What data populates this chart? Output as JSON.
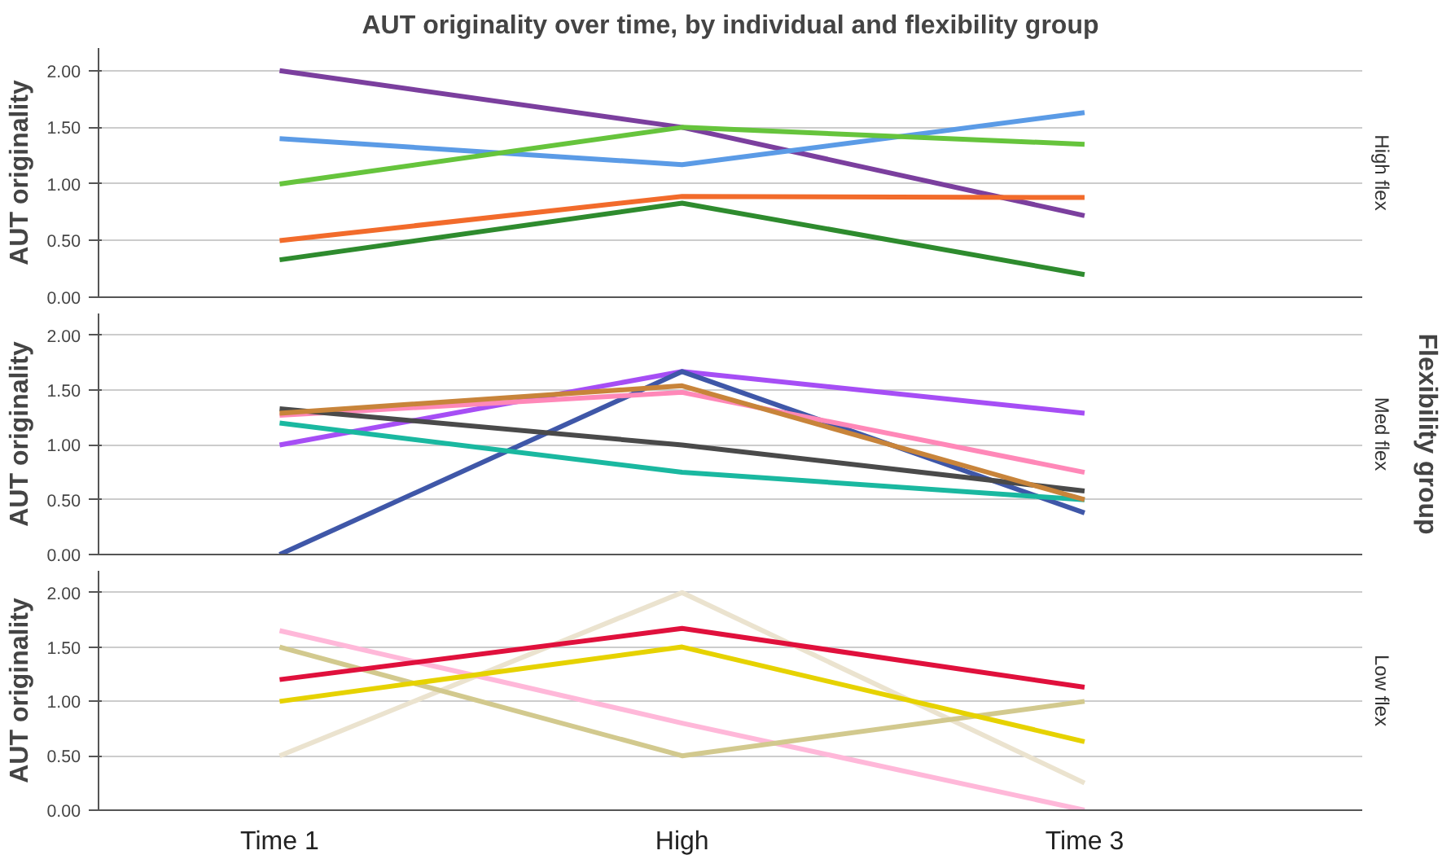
{
  "chart_data": [
    {
      "type": "line",
      "title": "AUT originality over time, by individual and flexibility group",
      "ylabel": "AUT originality",
      "annotations": [
        "High flex"
      ],
      "ylim": [
        0,
        2.2
      ],
      "yticks": [
        {
          "value": 0,
          "label": "0.00"
        },
        {
          "value": 0.5,
          "label": "0.50"
        },
        {
          "value": 1,
          "label": "1.00"
        },
        {
          "value": 1.5,
          "label": "1.50"
        },
        {
          "value": 2,
          "label": "2.00"
        }
      ],
      "grid": "y",
      "tick_labels": "y",
      "series": [
        {
          "color": "#7b3f9e",
          "values": [
            2.0,
            1.5,
            0.72
          ]
        },
        {
          "color": "#5b9be6",
          "values": [
            1.4,
            1.17,
            1.63
          ]
        },
        {
          "color": "#66c43c",
          "values": [
            1.0,
            1.5,
            1.35
          ]
        },
        {
          "color": "#f26b2b",
          "values": [
            0.5,
            0.89,
            0.88
          ]
        },
        {
          "color": "#2e8b2e",
          "values": [
            0.33,
            0.83,
            0.2
          ]
        }
      ]
    },
    {
      "type": "line",
      "ylabel": "AUT originality",
      "y2label": "Flexibility group",
      "annotations": [
        "Med flex"
      ],
      "ylim": [
        0,
        2.2
      ],
      "yticks": [
        {
          "value": 0,
          "label": "0.00"
        },
        {
          "value": 0.5,
          "label": "0.50"
        },
        {
          "value": 1,
          "label": "1.00"
        },
        {
          "value": 1.5,
          "label": "1.50"
        },
        {
          "value": 2,
          "label": "2.00"
        }
      ],
      "grid": "y",
      "tick_labels": "y",
      "series": [
        {
          "color": "#a64ef5",
          "values": [
            1.0,
            1.67,
            1.29
          ]
        },
        {
          "color": "#3f57a8",
          "values": [
            0.0,
            1.67,
            0.38
          ]
        },
        {
          "color": "#ff88b8",
          "values": [
            1.27,
            1.48,
            0.75
          ]
        },
        {
          "color": "#4a4a4a",
          "values": [
            1.33,
            1.0,
            0.58
          ]
        },
        {
          "color": "#1ab8a0",
          "values": [
            1.2,
            0.75,
            0.5
          ]
        },
        {
          "color": "#c8843a",
          "values": [
            1.29,
            1.54,
            0.5
          ]
        }
      ]
    },
    {
      "type": "line",
      "ylabel": "AUT originality",
      "annotations": [
        "Low flex"
      ],
      "categories": [
        "Time 1",
        "High",
        "Time 3"
      ],
      "ylim": [
        0,
        2.2
      ],
      "yticks": [
        {
          "value": 0,
          "label": "0.00"
        },
        {
          "value": 0.5,
          "label": "0.50"
        },
        {
          "value": 1,
          "label": "1.00"
        },
        {
          "value": 1.5,
          "label": "1.50"
        },
        {
          "value": 2,
          "label": "2.00"
        }
      ],
      "grid": "y",
      "series": [
        {
          "color": "#ebe3cf",
          "values": [
            0.5,
            2.0,
            0.25
          ]
        },
        {
          "color": "#ffb8d9",
          "values": [
            1.65,
            0.8,
            0.0
          ]
        },
        {
          "color": "#d2c98e",
          "values": [
            1.5,
            0.5,
            1.0
          ]
        },
        {
          "color": "#e6d200",
          "values": [
            1.0,
            1.5,
            0.63
          ]
        },
        {
          "color": "#e0103c",
          "values": [
            1.2,
            1.67,
            1.13
          ]
        }
      ]
    }
  ]
}
